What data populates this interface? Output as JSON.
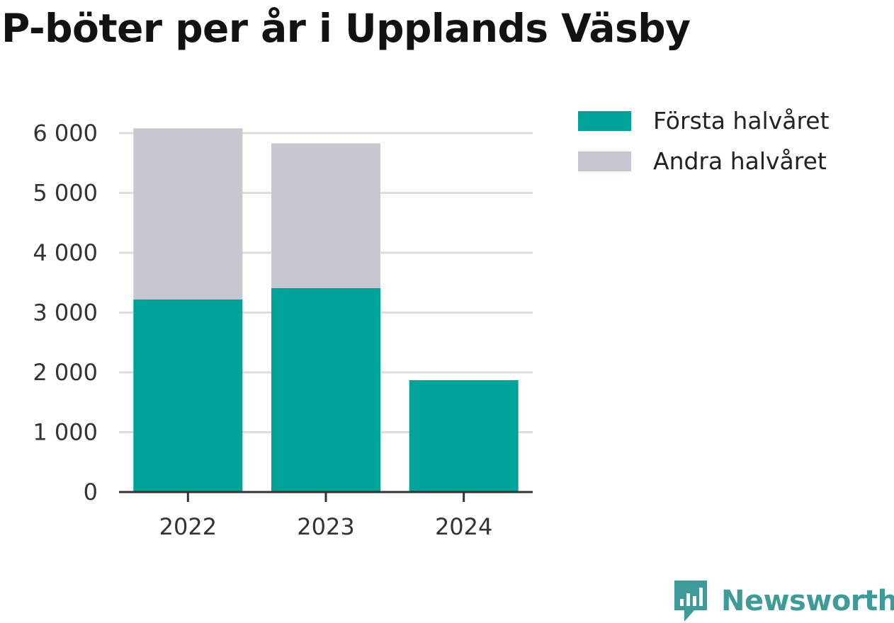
{
  "title": "P-böter per år i Upplands Väsby",
  "brand": {
    "name": "Newsworthy",
    "icon": "newsworthy-logo-icon",
    "color": "#3f9b97"
  },
  "chart_data": {
    "type": "bar",
    "stacked": true,
    "title": "P-böter per år i Upplands Väsby",
    "xlabel": "",
    "ylabel": "",
    "categories": [
      "2022",
      "2023",
      "2024"
    ],
    "series": [
      {
        "name": "Första halvåret",
        "color": "#00a39a",
        "values": [
          3220,
          3410,
          1870
        ]
      },
      {
        "name": "Andra halvåret",
        "color": "#c8c6d1",
        "values": [
          2860,
          2420,
          0
        ]
      }
    ],
    "ylim": [
      0,
      6000
    ],
    "yticks": [
      0,
      1000,
      2000,
      3000,
      4000,
      5000,
      6000
    ],
    "ytick_labels": [
      "0",
      "1 000",
      "2 000",
      "3 000",
      "4 000",
      "5 000",
      "6 000"
    ],
    "grid": true,
    "legend_position": "top-right"
  }
}
